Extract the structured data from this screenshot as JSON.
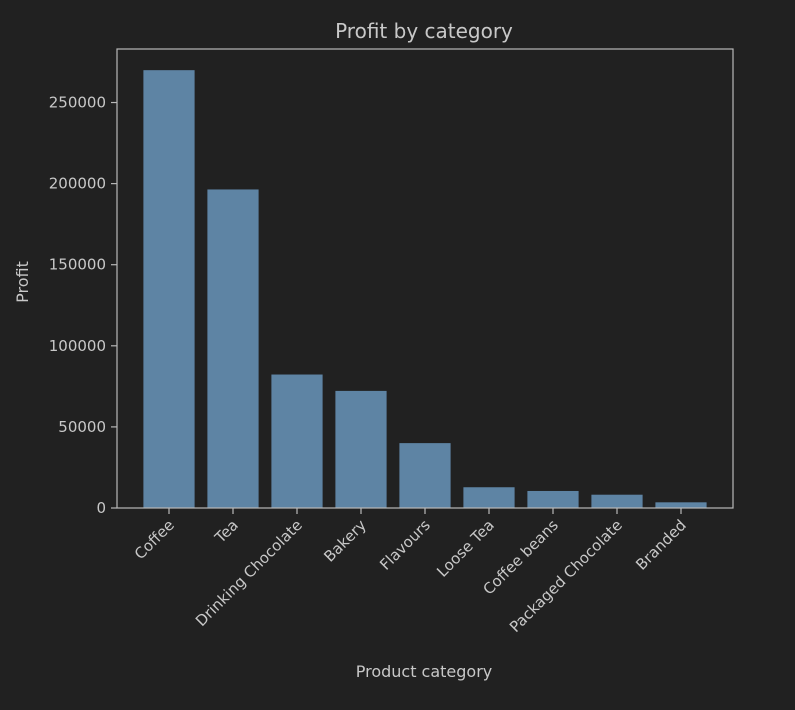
{
  "chart_data": {
    "type": "bar",
    "title": "Profit by category",
    "xlabel": "Product category",
    "ylabel": "Profit",
    "categories": [
      "Coffee",
      "Tea",
      "Drinking Chocolate",
      "Bakery",
      "Flavours",
      "Loose Tea",
      "Coffee beans",
      "Packaged Chocolate",
      "Branded"
    ],
    "values": [
      269950,
      196400,
      82300,
      72200,
      40000,
      12800,
      10500,
      8200,
      3500
    ],
    "ylim": [
      0,
      283000
    ],
    "yticks": [
      0,
      50000,
      100000,
      150000,
      200000,
      250000
    ],
    "ytick_labels": [
      "0",
      "50000",
      "100000",
      "150000",
      "200000",
      "250000"
    ],
    "grid": false,
    "colors": {
      "background": "#212121",
      "bar": "#5e84a4",
      "axis": "#b8b8b8",
      "text": "#c8c8c8"
    }
  }
}
